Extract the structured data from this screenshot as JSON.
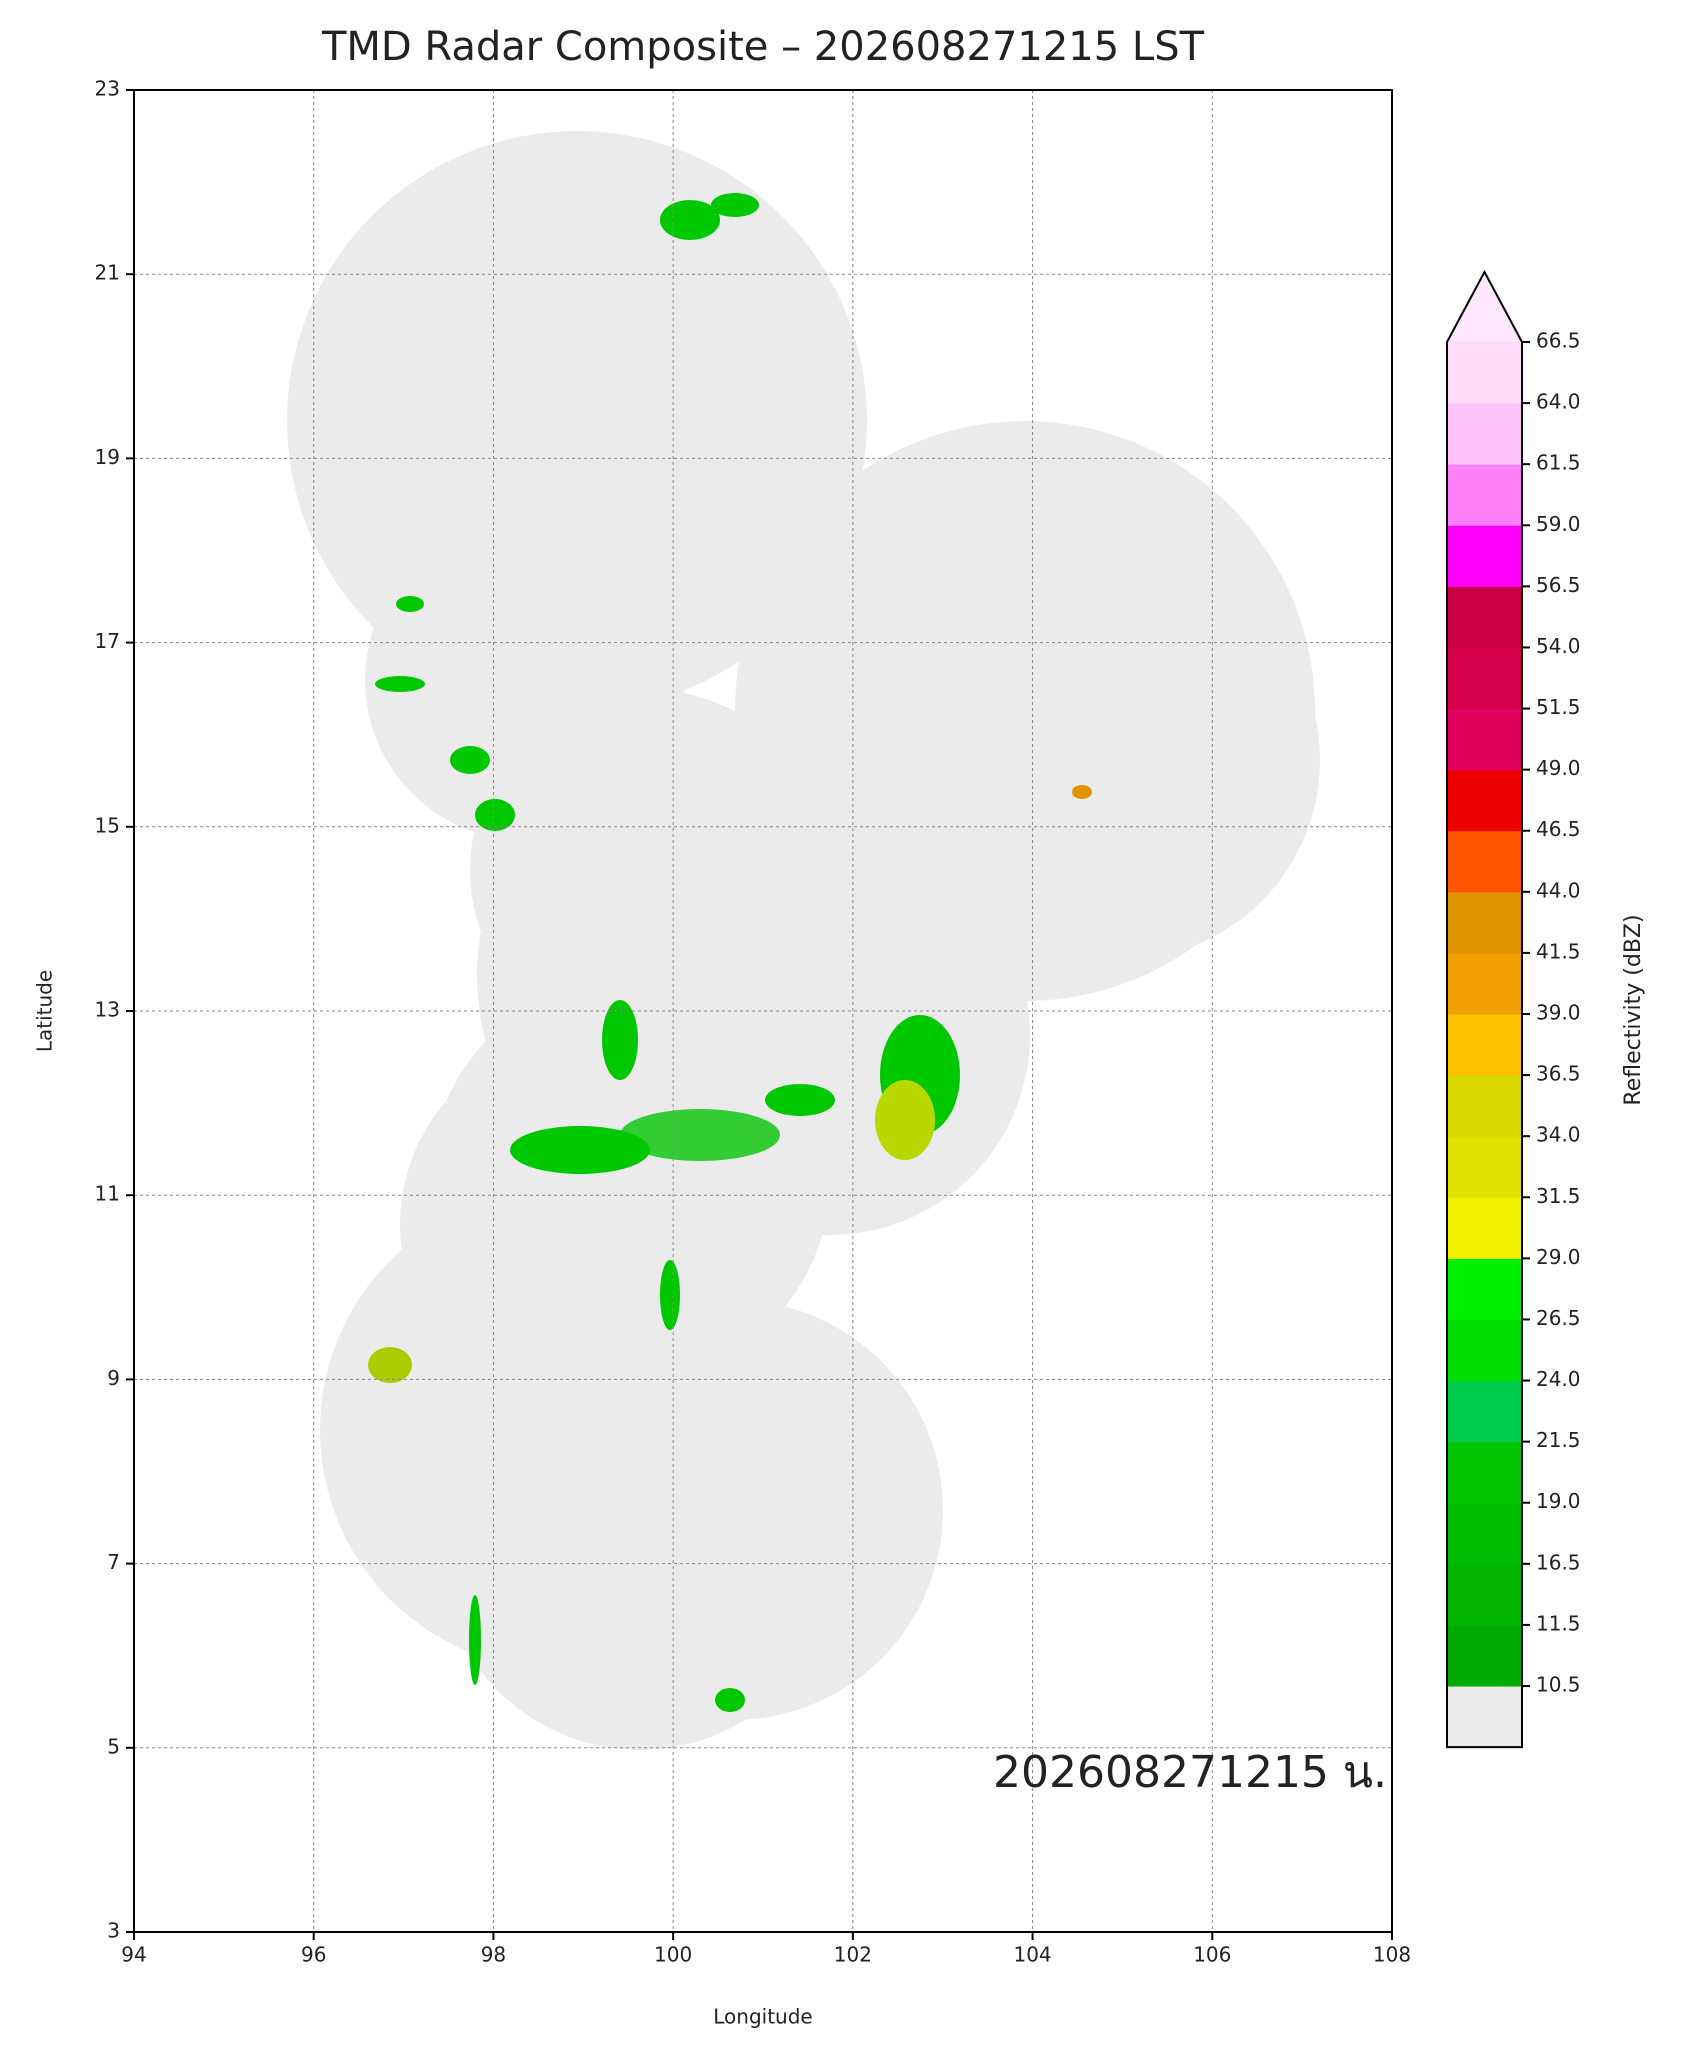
{
  "title": "TMD Radar Composite – 202608271215 LST",
  "map": {
    "xlabel": "Longitude",
    "ylabel": "Latitude",
    "xlim": [
      94,
      108
    ],
    "ylim": [
      3,
      23
    ],
    "xticks": [
      94,
      96,
      98,
      100,
      102,
      104,
      106,
      108
    ],
    "yticks": [
      3,
      5,
      7,
      9,
      11,
      13,
      15,
      17,
      19,
      21,
      23
    ],
    "grid": true,
    "annotation": "202608271215 น."
  },
  "colorbar": {
    "label": "Reflectivity (dBZ)",
    "ticks": [
      10.5,
      11.5,
      16.5,
      {
        "value": 19,
        "label": "19.0"
      },
      21.5,
      {
        "value": 24,
        "label": "24.0"
      },
      26.5,
      {
        "value": 29,
        "label": "29.0"
      },
      31.5,
      {
        "value": 34,
        "label": "34.0"
      },
      36.5,
      {
        "value": 39,
        "label": "39.0"
      },
      41.5,
      {
        "value": 44,
        "label": "44.0"
      },
      46.5,
      {
        "value": 49,
        "label": "49.0"
      },
      51.5,
      {
        "value": 54,
        "label": "54.0"
      },
      56.5,
      {
        "value": 59,
        "label": "59.0"
      },
      61.5,
      {
        "value": 64,
        "label": "64.0"
      },
      66.5
    ],
    "colors": [
      "#ebebeb",
      "#00aa00",
      "#00b400",
      "#00bc00",
      "#00c400",
      "#00cc4c",
      "#00dd00",
      "#00f000",
      "#f2f200",
      "#e2e200",
      "#d8d800",
      "#ffc000",
      "#f0a000",
      "#e09400",
      "#ff5500",
      "#ee0000",
      "#e00060",
      "#d4004c",
      "#cc0044",
      "#ff00ff",
      "#ff80f8",
      "#ffc4fc",
      "#ffdcfc",
      "#ffe8ff"
    ]
  }
}
